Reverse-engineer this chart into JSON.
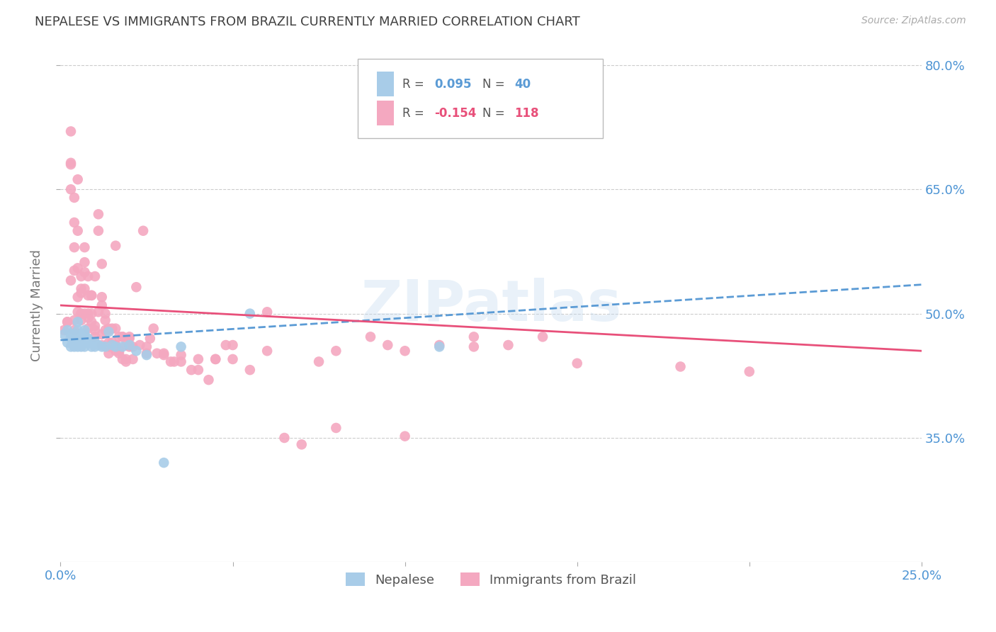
{
  "title": "NEPALESE VS IMMIGRANTS FROM BRAZIL CURRENTLY MARRIED CORRELATION CHART",
  "source": "Source: ZipAtlas.com",
  "ylabel": "Currently Married",
  "x_min": 0.0,
  "x_max": 0.25,
  "y_min": 0.2,
  "y_max": 0.82,
  "y_ticks": [
    0.35,
    0.5,
    0.65,
    0.8
  ],
  "y_tick_labels": [
    "35.0%",
    "50.0%",
    "65.0%",
    "80.0%"
  ],
  "nepalese_color": "#a8cce8",
  "brazil_color": "#f4a8c0",
  "nepalese_line_color": "#5b9bd5",
  "brazil_line_color": "#e8507a",
  "watermark": "ZIPatlas",
  "background_color": "#ffffff",
  "grid_color": "#cccccc",
  "axis_label_color": "#4d94d4",
  "title_color": "#404040",
  "nepalese_x": [
    0.001,
    0.002,
    0.002,
    0.003,
    0.003,
    0.003,
    0.004,
    0.004,
    0.004,
    0.005,
    0.005,
    0.005,
    0.005,
    0.006,
    0.006,
    0.006,
    0.007,
    0.007,
    0.007,
    0.007,
    0.008,
    0.008,
    0.009,
    0.009,
    0.01,
    0.01,
    0.011,
    0.012,
    0.013,
    0.014,
    0.015,
    0.016,
    0.018,
    0.02,
    0.022,
    0.025,
    0.03,
    0.035,
    0.055,
    0.11
  ],
  "nepalese_y": [
    0.475,
    0.48,
    0.465,
    0.47,
    0.475,
    0.46,
    0.475,
    0.465,
    0.46,
    0.49,
    0.48,
    0.47,
    0.46,
    0.475,
    0.47,
    0.46,
    0.48,
    0.475,
    0.47,
    0.46,
    0.47,
    0.465,
    0.465,
    0.46,
    0.465,
    0.46,
    0.462,
    0.46,
    0.46,
    0.478,
    0.462,
    0.46,
    0.46,
    0.462,
    0.455,
    0.45,
    0.32,
    0.46,
    0.5,
    0.46
  ],
  "brazil_x": [
    0.001,
    0.002,
    0.003,
    0.003,
    0.004,
    0.004,
    0.004,
    0.005,
    0.005,
    0.005,
    0.006,
    0.006,
    0.006,
    0.007,
    0.007,
    0.007,
    0.008,
    0.008,
    0.008,
    0.009,
    0.009,
    0.01,
    0.01,
    0.011,
    0.011,
    0.012,
    0.012,
    0.013,
    0.013,
    0.014,
    0.014,
    0.015,
    0.015,
    0.016,
    0.016,
    0.017,
    0.017,
    0.018,
    0.019,
    0.019,
    0.02,
    0.021,
    0.022,
    0.023,
    0.024,
    0.025,
    0.026,
    0.027,
    0.028,
    0.03,
    0.032,
    0.033,
    0.035,
    0.038,
    0.04,
    0.043,
    0.045,
    0.048,
    0.05,
    0.055,
    0.06,
    0.065,
    0.07,
    0.075,
    0.08,
    0.09,
    0.095,
    0.1,
    0.11,
    0.12,
    0.13,
    0.14,
    0.003,
    0.005,
    0.007,
    0.009,
    0.011,
    0.013,
    0.016,
    0.018,
    0.02,
    0.003,
    0.004,
    0.005,
    0.006,
    0.008,
    0.01,
    0.012,
    0.014,
    0.016,
    0.003,
    0.004,
    0.006,
    0.007,
    0.009,
    0.015,
    0.017,
    0.019,
    0.021,
    0.002,
    0.004,
    0.006,
    0.008,
    0.01,
    0.012,
    0.014,
    0.016,
    0.018,
    0.012,
    0.014,
    0.02,
    0.025,
    0.03,
    0.035,
    0.04,
    0.045,
    0.05,
    0.06,
    0.08,
    0.1,
    0.12,
    0.15,
    0.18,
    0.2
  ],
  "brazil_y": [
    0.48,
    0.49,
    0.65,
    0.68,
    0.64,
    0.61,
    0.58,
    0.6,
    0.555,
    0.52,
    0.545,
    0.525,
    0.5,
    0.58,
    0.55,
    0.53,
    0.545,
    0.522,
    0.5,
    0.522,
    0.5,
    0.545,
    0.48,
    0.62,
    0.6,
    0.56,
    0.52,
    0.5,
    0.48,
    0.482,
    0.46,
    0.482,
    0.462,
    0.582,
    0.462,
    0.472,
    0.452,
    0.472,
    0.462,
    0.442,
    0.472,
    0.46,
    0.532,
    0.462,
    0.6,
    0.452,
    0.47,
    0.482,
    0.452,
    0.452,
    0.442,
    0.442,
    0.442,
    0.432,
    0.432,
    0.42,
    0.445,
    0.462,
    0.462,
    0.432,
    0.502,
    0.35,
    0.342,
    0.442,
    0.362,
    0.472,
    0.462,
    0.352,
    0.462,
    0.472,
    0.462,
    0.472,
    0.72,
    0.662,
    0.562,
    0.522,
    0.502,
    0.492,
    0.482,
    0.472,
    0.46,
    0.682,
    0.552,
    0.502,
    0.492,
    0.482,
    0.472,
    0.462,
    0.452,
    0.462,
    0.54,
    0.48,
    0.53,
    0.5,
    0.49,
    0.465,
    0.455,
    0.445,
    0.445,
    0.49,
    0.492,
    0.5,
    0.495,
    0.485,
    0.475,
    0.465,
    0.455,
    0.445,
    0.51,
    0.48,
    0.47,
    0.46,
    0.45,
    0.45,
    0.445,
    0.445,
    0.445,
    0.455,
    0.455,
    0.455,
    0.46,
    0.44,
    0.436,
    0.43
  ]
}
